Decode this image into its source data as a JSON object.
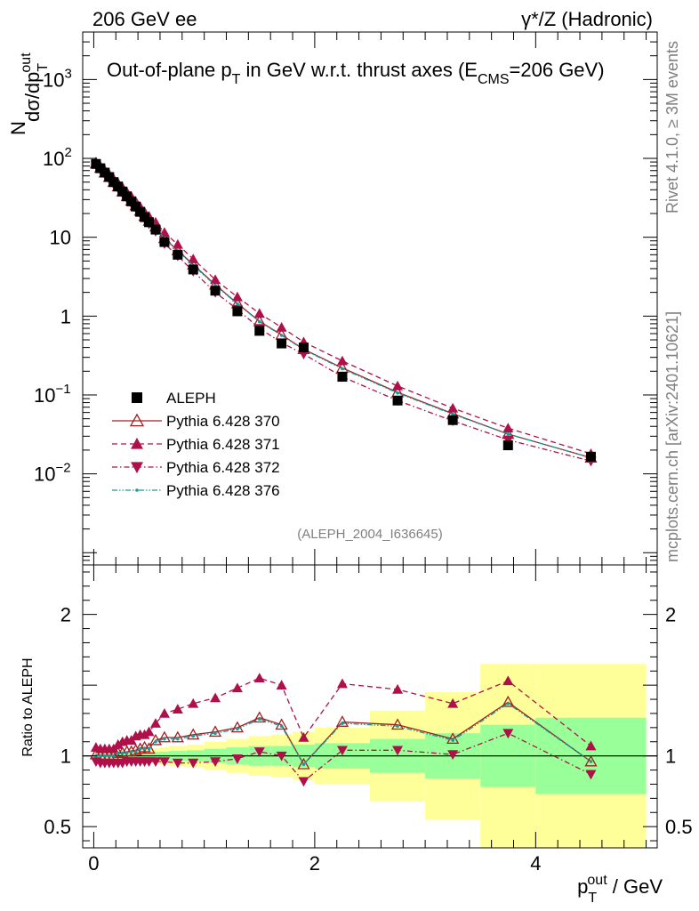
{
  "header": {
    "left": "206 GeV ee",
    "right": "γ*/Z (Hadronic)"
  },
  "side_texts": {
    "rivet": "Rivet 4.1.0, ≥ 3M events",
    "url": "mcplots.cern.ch [arXiv:2401.10621]"
  },
  "chart_data": {
    "type": "line",
    "title": "Out-of-plane p_T in GeV w.r.t. thrust axes (E_CMS=206 GeV)",
    "title_parts": {
      "a": "Out-of-plane p",
      "a_sub": "T",
      "b": " in GeV w.r.t. thrust axes (E",
      "b_sub": "CMS",
      "c": "=206 GeV)"
    },
    "analysis_id": "(ALEPH_2004_I636645)",
    "xlabel": {
      "main": "p",
      "sup": "out",
      "sub": "T",
      "tail": " / GeV"
    },
    "ylabel": {
      "n": "N",
      "main": "dσ/dp",
      "sup": "out",
      "sub": "T"
    },
    "ratio_ylabel": "Ratio to ALEPH",
    "xlim": [
      -0.1,
      5.1
    ],
    "ylim_log": [
      0.0007,
      4000
    ],
    "ratio_ylim": [
      0.35,
      2.35
    ],
    "x_ticks": [
      "0",
      "2",
      "4"
    ],
    "x_tick_values": [
      0,
      2,
      4
    ],
    "y_ticks": [
      {
        "value": 1000,
        "base": "10",
        "exp": "3"
      },
      {
        "value": 100,
        "base": "10",
        "exp": "2"
      },
      {
        "value": 10,
        "base": "10",
        "exp": ""
      },
      {
        "value": 1,
        "base": "1",
        "exp": ""
      },
      {
        "value": 0.1,
        "base": "10",
        "exp": "−1"
      },
      {
        "value": 0.01,
        "base": "10",
        "exp": "−2"
      }
    ],
    "ratio_ticks": [
      "0.5",
      "1",
      "2"
    ],
    "ratio_tick_values": [
      0.5,
      1,
      2
    ],
    "x": [
      0.02,
      0.06,
      0.1,
      0.14,
      0.18,
      0.22,
      0.26,
      0.3,
      0.34,
      0.38,
      0.42,
      0.46,
      0.5,
      0.56,
      0.64,
      0.76,
      0.9,
      1.1,
      1.3,
      1.5,
      1.7,
      1.9,
      2.25,
      2.75,
      3.25,
      3.75,
      4.5
    ],
    "bin_edges": [
      0.0,
      0.04,
      0.08,
      0.12,
      0.16,
      0.2,
      0.24,
      0.28,
      0.32,
      0.36,
      0.4,
      0.44,
      0.48,
      0.52,
      0.6,
      0.68,
      0.84,
      1.0,
      1.2,
      1.4,
      1.6,
      1.8,
      2.0,
      2.5,
      3.0,
      3.5,
      4.0,
      5.0
    ],
    "series": [
      {
        "name": "ALEPH",
        "color": "#000000",
        "marker": "square",
        "values": [
          85,
          75,
          66,
          58,
          50,
          44,
          38,
          33,
          28.5,
          24.5,
          21,
          18,
          15.5,
          12.5,
          8.7,
          6.0,
          3.9,
          2.1,
          1.15,
          0.65,
          0.45,
          0.4,
          0.17,
          0.085,
          0.048,
          0.023,
          0.0165
        ],
        "ratio": [
          1,
          1,
          1,
          1,
          1,
          1,
          1,
          1,
          1,
          1,
          1,
          1,
          1,
          1,
          1,
          1,
          1,
          1,
          1,
          1,
          1,
          1,
          1,
          1,
          1,
          1,
          1
        ]
      },
      {
        "name": "Pythia 6.428 370",
        "color": "#a02020",
        "marker": "open-triangle-up",
        "linestyle": "solid",
        "values": [
          86,
          75.5,
          66,
          58,
          50,
          44,
          38,
          33,
          29,
          25.2,
          21.6,
          18.5,
          16.1,
          13.6,
          9.7,
          6.8,
          4.5,
          2.5,
          1.45,
          0.86,
          0.58,
          0.38,
          0.22,
          0.108,
          0.058,
          0.032,
          0.016
        ],
        "ratio": [
          1.01,
          1.0,
          1.0,
          1.0,
          1.0,
          1.02,
          1.02,
          1.03,
          1.03,
          1.04,
          1.05,
          1.06,
          1.05,
          1.11,
          1.13,
          1.13,
          1.15,
          1.17,
          1.2,
          1.27,
          1.22,
          0.94,
          1.24,
          1.22,
          1.12,
          1.38,
          0.96
        ]
      },
      {
        "name": "Pythia 6.428 371",
        "color": "#b0104a",
        "marker": "filled-triangle-up",
        "linestyle": "dashed",
        "values": [
          90,
          80,
          71,
          63,
          55,
          49,
          43,
          37.5,
          33,
          28.5,
          24.5,
          21,
          18.5,
          15.5,
          11.5,
          8.1,
          5.3,
          2.9,
          1.75,
          1.08,
          0.72,
          0.47,
          0.27,
          0.13,
          0.068,
          0.038,
          0.018
        ],
        "ratio": [
          1.06,
          1.05,
          1.05,
          1.05,
          1.05,
          1.08,
          1.1,
          1.11,
          1.11,
          1.14,
          1.15,
          1.15,
          1.17,
          1.23,
          1.3,
          1.33,
          1.37,
          1.41,
          1.48,
          1.55,
          1.5,
          1.13,
          1.51,
          1.47,
          1.37,
          1.53,
          1.07
        ]
      },
      {
        "name": "Pythia 6.428 372",
        "color": "#b0104a",
        "marker": "filled-triangle-down",
        "linestyle": "dashdot",
        "values": [
          82,
          71.5,
          63,
          55,
          47,
          41.5,
          36,
          31,
          27,
          23.5,
          20,
          17.2,
          14.8,
          11.9,
          8.3,
          5.8,
          3.7,
          2.0,
          1.22,
          0.7,
          0.46,
          0.33,
          0.17,
          0.085,
          0.047,
          0.027,
          0.0145
        ],
        "ratio": [
          0.96,
          0.95,
          0.95,
          0.95,
          0.95,
          0.95,
          0.95,
          0.96,
          0.96,
          0.96,
          0.96,
          0.96,
          0.96,
          0.96,
          0.96,
          0.95,
          0.95,
          0.96,
          0.98,
          1.03,
          1.0,
          0.82,
          1.04,
          1.04,
          1.01,
          1.16,
          0.87
        ]
      },
      {
        "name": "Pythia 6.428 376",
        "color": "#1a9a9a",
        "marker": "small-dot",
        "linestyle": "dashdotdot",
        "values": [
          85.5,
          75,
          66,
          58,
          50,
          44,
          38,
          33,
          29,
          25,
          21.5,
          18.4,
          16,
          13.5,
          9.6,
          6.7,
          4.4,
          2.45,
          1.43,
          0.85,
          0.57,
          0.375,
          0.215,
          0.106,
          0.057,
          0.032,
          0.016
        ],
        "ratio": [
          1.0,
          1.0,
          1.0,
          1.0,
          1.0,
          1.02,
          1.02,
          1.02,
          1.03,
          1.03,
          1.05,
          1.05,
          1.05,
          1.1,
          1.12,
          1.12,
          1.14,
          1.16,
          1.19,
          1.26,
          1.21,
          0.94,
          1.23,
          1.21,
          1.11,
          1.37,
          0.96
        ]
      }
    ],
    "ratio_bands": {
      "green_color": "#99ff99",
      "yellow_color": "#ffff99",
      "green_half": [
        0.01,
        0.01,
        0.012,
        0.012,
        0.013,
        0.014,
        0.015,
        0.016,
        0.017,
        0.018,
        0.02,
        0.022,
        0.024,
        0.028,
        0.03,
        0.035,
        0.04,
        0.05,
        0.06,
        0.07,
        0.07,
        0.08,
        0.09,
        0.12,
        0.16,
        0.22,
        0.27
      ],
      "yellow_half": [
        0.02,
        0.02,
        0.022,
        0.024,
        0.026,
        0.028,
        0.03,
        0.032,
        0.034,
        0.036,
        0.04,
        0.044,
        0.048,
        0.055,
        0.06,
        0.07,
        0.08,
        0.1,
        0.12,
        0.14,
        0.15,
        0.17,
        0.2,
        0.32,
        0.45,
        0.65,
        0.65
      ]
    }
  }
}
